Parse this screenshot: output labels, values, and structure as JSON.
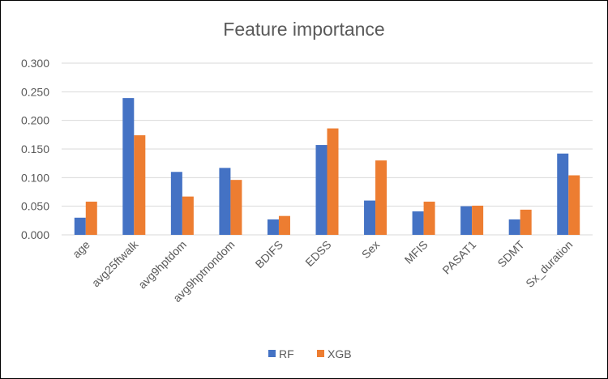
{
  "chart_data": {
    "type": "bar",
    "title": "Feature importance",
    "xlabel": "",
    "ylabel": "",
    "categories": [
      "age",
      "avg25ftwalk",
      "avg9hptdom",
      "avg9hptnondom",
      "BDIFS",
      "EDSS",
      "Sex",
      "MFIS",
      "PASAT1",
      "SDMT",
      "Sx_duration"
    ],
    "series": [
      {
        "name": "RF",
        "color": "#4472C4",
        "values": [
          0.03,
          0.239,
          0.11,
          0.117,
          0.027,
          0.157,
          0.06,
          0.041,
          0.05,
          0.027,
          0.142
        ]
      },
      {
        "name": "XGB",
        "color": "#ED7D31",
        "values": [
          0.058,
          0.174,
          0.067,
          0.096,
          0.033,
          0.186,
          0.13,
          0.058,
          0.051,
          0.044,
          0.104
        ]
      }
    ],
    "ylim": [
      0,
      0.3
    ],
    "yticks": [
      "0.000",
      "0.050",
      "0.100",
      "0.150",
      "0.200",
      "0.250",
      "0.300"
    ],
    "grid": true,
    "legend_position": "bottom"
  }
}
